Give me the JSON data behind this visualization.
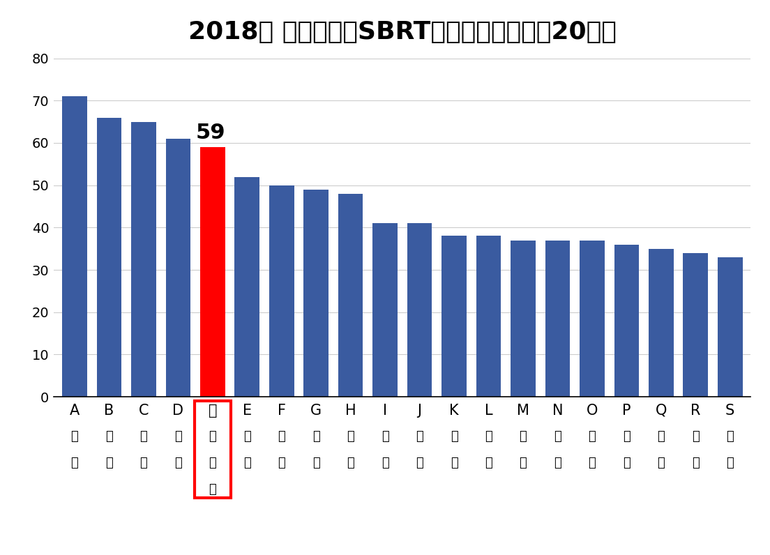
{
  "title": "2018年 肌がんへのSBRT実施数　全国上位20施設",
  "values": [
    71,
    66,
    65,
    61,
    59,
    52,
    50,
    49,
    48,
    41,
    41,
    38,
    38,
    37,
    37,
    37,
    36,
    35,
    34,
    33
  ],
  "bar_colors": [
    "#3A5BA0",
    "#3A5BA0",
    "#3A5BA0",
    "#3A5BA0",
    "#FF0000",
    "#3A5BA0",
    "#3A5BA0",
    "#3A5BA0",
    "#3A5BA0",
    "#3A5BA0",
    "#3A5BA0",
    "#3A5BA0",
    "#3A5BA0",
    "#3A5BA0",
    "#3A5BA0",
    "#3A5BA0",
    "#3A5BA0",
    "#3A5BA0",
    "#3A5BA0",
    "#3A5BA0"
  ],
  "x_labels_row1": [
    "A",
    "B",
    "C",
    "D",
    "大",
    "E",
    "F",
    "G",
    "H",
    "I",
    "J",
    "K",
    "L",
    "M",
    "N",
    "O",
    "P",
    "Q",
    "R",
    "S"
  ],
  "x_labels_row2": [
    "病",
    "病",
    "病",
    "大",
    "船",
    "大",
    "病",
    "大",
    "病",
    "大",
    "病",
    "病",
    "大",
    "病",
    "大",
    "病",
    "病",
    "病",
    "病",
    "大"
  ],
  "x_labels_row3": [
    "院",
    "院",
    "院",
    "学",
    "中",
    "学",
    "院",
    "学",
    "院",
    "学",
    "院",
    "学",
    "院",
    "学",
    "院",
    "院",
    "院",
    "院",
    "院",
    "学"
  ],
  "x_labels_row4": [
    "",
    "",
    "",
    "",
    "央",
    "",
    "",
    "",
    "",
    "",
    "",
    "",
    "",
    "",
    "",
    "",
    "",
    "",
    "",
    ""
  ],
  "highlighted_index": 4,
  "annotation_value": "59",
  "ylim": [
    0,
    80
  ],
  "yticks": [
    0,
    10,
    20,
    30,
    40,
    50,
    60,
    70,
    80
  ],
  "background_color": "#FFFFFF",
  "grid_color": "#CCCCCC",
  "title_fontsize": 26,
  "annotation_fontsize": 22,
  "tick_fontsize": 14,
  "label_fontsize_row1": 15,
  "label_fontsize_rows": 13
}
